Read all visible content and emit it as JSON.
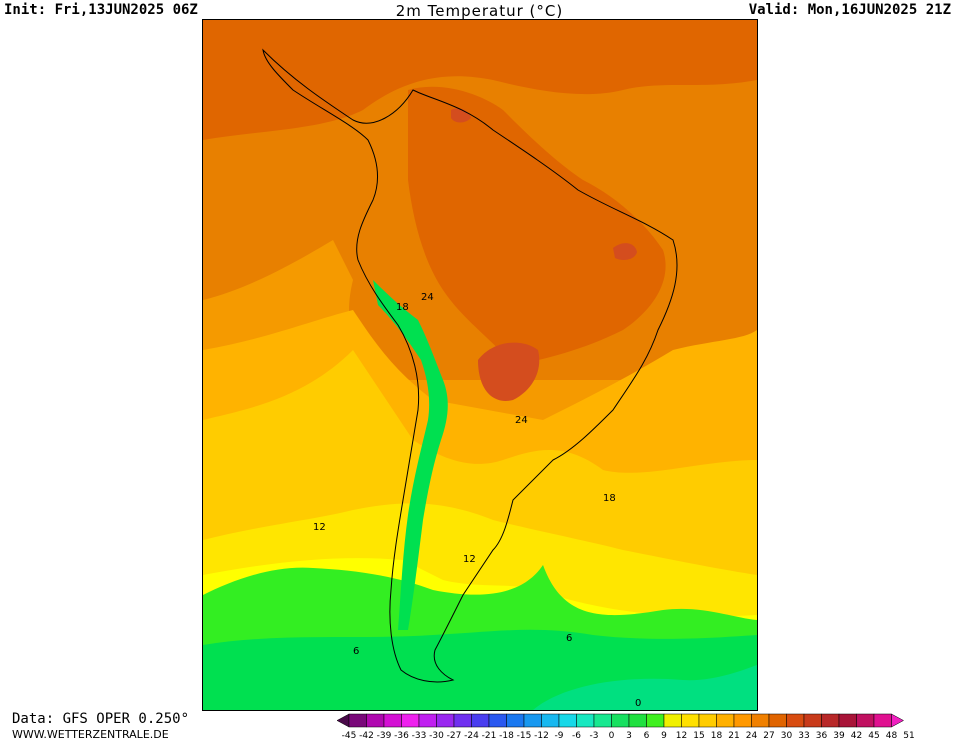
{
  "header": {
    "init": "Init: Fri,13JUN2025 06Z",
    "title": "2m Temperatur (°C)",
    "valid": "Valid: Mon,16JUN2025 21Z"
  },
  "footer": {
    "data_source": "Data: GFS OPER 0.250°",
    "website": "WWW.WETTERZENTRALE.DE"
  },
  "map": {
    "region": "South America",
    "contour_labels": [
      "24",
      "18",
      "24",
      "18",
      "12",
      "12",
      "6",
      "6",
      "0"
    ]
  },
  "legend": {
    "ticks": [
      "-45",
      "-42",
      "-39",
      "-36",
      "-33",
      "-30",
      "-27",
      "-24",
      "-21",
      "-18",
      "-15",
      "-12",
      "-9",
      "-6",
      "-3",
      "0",
      "3",
      "6",
      "9",
      "12",
      "15",
      "18",
      "21",
      "24",
      "27",
      "30",
      "33",
      "36",
      "39",
      "42",
      "45",
      "48",
      "51"
    ],
    "colors": [
      "#4a0a4a",
      "#7a087a",
      "#b008b0",
      "#d410d4",
      "#ee20ee",
      "#c020f0",
      "#9a28f0",
      "#7030f0",
      "#4a3ef0",
      "#2a58f0",
      "#1a78f0",
      "#1898f0",
      "#18b8f0",
      "#18d8e8",
      "#18e8c0",
      "#18e890",
      "#18e060",
      "#20e040",
      "#40f020",
      "#f0f000",
      "#ffe000",
      "#ffcc00",
      "#ffb000",
      "#ff9800",
      "#f08000",
      "#e06400",
      "#d84c10",
      "#c83a1a",
      "#b82828",
      "#a81438",
      "#c01060",
      "#e01090",
      "#f020c0"
    ]
  },
  "colors": {
    "t0_3": "#00e080",
    "t3_6": "#00e050",
    "t6_9": "#33ee22",
    "t9_12": "#ffff00",
    "t12_15": "#ffe600",
    "t15_18": "#ffcc00",
    "t18_21": "#ffb300",
    "t21_24": "#f59a00",
    "t24_27": "#e88000",
    "t27_30": "#e06600",
    "t30_33": "#d44d1e",
    "t33_36": "#c8402a"
  }
}
